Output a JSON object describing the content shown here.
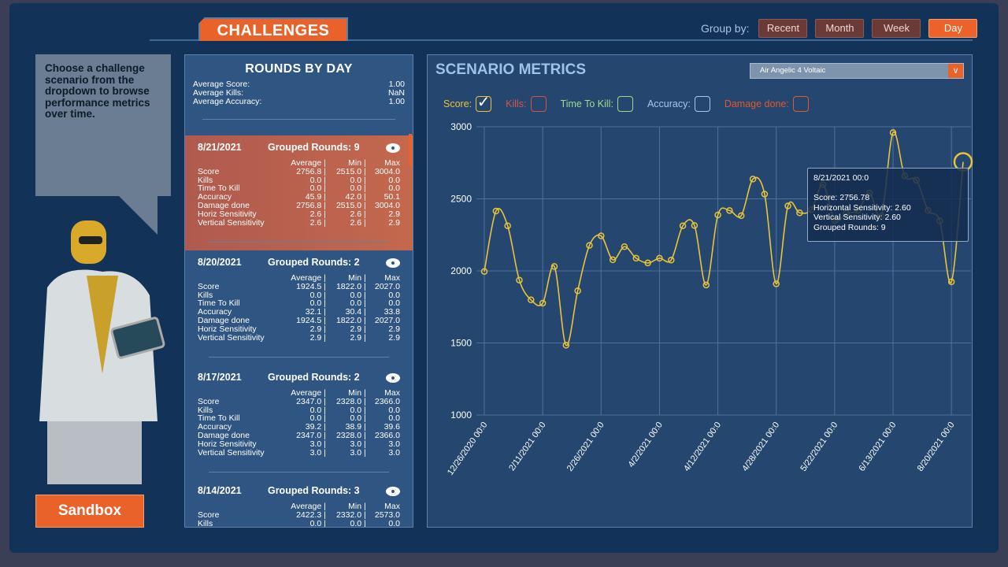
{
  "header": {
    "tab": "CHALLENGES",
    "group_by_label": "Group by:",
    "group_buttons": [
      "Recent",
      "Month",
      "Week",
      "Day"
    ],
    "active_group": "Day"
  },
  "helper": {
    "text": "Choose a challenge scenario from the dropdown to browse performance metrics over time.",
    "sandbox": "Sandbox"
  },
  "rounds": {
    "title": "ROUNDS BY DAY",
    "summary": [
      {
        "label": "Average Score:",
        "value": "1.00"
      },
      {
        "label": "Average Kills:",
        "value": "NaN"
      },
      {
        "label": "Average Accuracy:",
        "value": "1.00"
      }
    ],
    "cols": [
      "",
      "Average |",
      "Min |",
      "Max"
    ],
    "cards": [
      {
        "date": "8/21/2021",
        "grouped": "Grouped Rounds: 9",
        "rows": [
          [
            "Score",
            "2756.8 |",
            "2515.0 |",
            "3004.0"
          ],
          [
            "Kills",
            "0.0 |",
            "0.0 |",
            "0.0"
          ],
          [
            "Time To Kill",
            "0.0 |",
            "0.0 |",
            "0.0"
          ],
          [
            "Accuracy",
            "45.9 |",
            "42.0 |",
            "50.1"
          ],
          [
            "Damage done",
            "2756.8 |",
            "2515.0 |",
            "3004.0"
          ],
          [
            "Horiz Sensitivity",
            "2.6 |",
            "2.6 |",
            "2.9"
          ],
          [
            "Vertical Sensitivity",
            "2.6 |",
            "2.6 |",
            "2.9"
          ]
        ]
      },
      {
        "date": "8/20/2021",
        "grouped": "Grouped Rounds: 2",
        "rows": [
          [
            "Score",
            "1924.5 |",
            "1822.0 |",
            "2027.0"
          ],
          [
            "Kills",
            "0.0 |",
            "0.0 |",
            "0.0"
          ],
          [
            "Time To Kill",
            "0.0 |",
            "0.0 |",
            "0.0"
          ],
          [
            "Accuracy",
            "32.1 |",
            "30.4 |",
            "33.8"
          ],
          [
            "Damage done",
            "1924.5 |",
            "1822.0 |",
            "2027.0"
          ],
          [
            "Horiz Sensitivity",
            "2.9 |",
            "2.9 |",
            "2.9"
          ],
          [
            "Vertical Sensitivity",
            "2.9 |",
            "2.9 |",
            "2.9"
          ]
        ]
      },
      {
        "date": "8/17/2021",
        "grouped": "Grouped Rounds: 2",
        "rows": [
          [
            "Score",
            "2347.0 |",
            "2328.0 |",
            "2366.0"
          ],
          [
            "Kills",
            "0.0 |",
            "0.0 |",
            "0.0"
          ],
          [
            "Time To Kill",
            "0.0 |",
            "0.0 |",
            "0.0"
          ],
          [
            "Accuracy",
            "39.2 |",
            "38.9 |",
            "39.6"
          ],
          [
            "Damage done",
            "2347.0 |",
            "2328.0 |",
            "2366.0"
          ],
          [
            "Horiz Sensitivity",
            "3.0 |",
            "3.0 |",
            "3.0"
          ],
          [
            "Vertical Sensitivity",
            "3.0 |",
            "3.0 |",
            "3.0"
          ]
        ]
      },
      {
        "date": "8/14/2021",
        "grouped": "Grouped Rounds: 3",
        "rows": [
          [
            "Score",
            "2422.3 |",
            "2332.0 |",
            "2573.0"
          ],
          [
            "Kills",
            "0.0 |",
            "0.0 |",
            "0.0"
          ]
        ]
      }
    ]
  },
  "metrics": {
    "title": "SCENARIO METRICS",
    "scenario": "Air Angelic 4 Voltaic",
    "legend": [
      {
        "label": "Score:",
        "color": "#e8c43a",
        "checked": true
      },
      {
        "label": "Kills:",
        "color": "#d0584a",
        "checked": false
      },
      {
        "label": "Time To Kill:",
        "color": "#9fdc8a",
        "checked": false
      },
      {
        "label": "Accuracy:",
        "color": "#a8c8f0",
        "checked": false
      },
      {
        "label": "Damage done:",
        "color": "#e0582e",
        "checked": false
      }
    ],
    "tooltip": [
      "8/21/2021 00:0",
      "",
      "Score: 2756.78",
      "Horizontal Sensitivity: 2.60",
      "Vertical Sensitivity: 2.60",
      "Grouped Rounds: 9"
    ]
  },
  "chart_data": {
    "type": "line",
    "series": [
      {
        "name": "Score",
        "color": "#e8c43a",
        "values": [
          1996,
          2415,
          2313,
          1936,
          1799,
          1776,
          2031,
          1484,
          1862,
          2177,
          2243,
          2077,
          2168,
          2088,
          2055,
          2088,
          2075,
          2313,
          2315,
          1902,
          2388,
          2419,
          2383,
          2637,
          2533,
          1910,
          2451,
          2403,
          2425,
          2599,
          2350,
          2400,
          2420,
          2540,
          2380,
          2960,
          2659,
          2630,
          2420,
          2347,
          1924,
          2756.78
        ]
      }
    ],
    "x_tick_labels": [
      "12/26/2020 00:0",
      "2/11/2021 00:0",
      "2/26/2021 00:0",
      "4/2/2021 00:0",
      "4/12/2021 00:0",
      "4/28/2021 00:0",
      "5/22/2021 00:0",
      "6/13/2021 00:0",
      "8/20/2021 00:0"
    ],
    "y_ticks": [
      1000,
      1500,
      2000,
      2500,
      3000
    ],
    "ylim": [
      1000,
      3000
    ],
    "grid": true
  }
}
